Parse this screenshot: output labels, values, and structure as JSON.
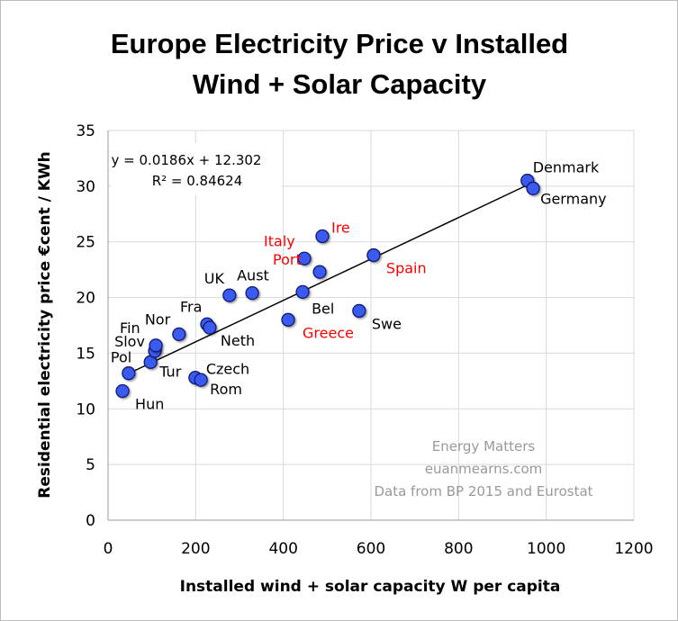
{
  "chart_data": {
    "type": "scatter",
    "title": "Europe Electricity Price v Installed Wind + Solar Capacity",
    "title_lines": [
      "Europe Electricity Price v Installed",
      "Wind + Solar Capacity"
    ],
    "xlabel": "Installed wind + solar capacity W per capita",
    "ylabel": "Residential electricity price €cent / KWh",
    "xlim": [
      0,
      1200
    ],
    "ylim": [
      0,
      35
    ],
    "xticks": [
      0,
      200,
      400,
      600,
      800,
      1000,
      1200
    ],
    "yticks": [
      0,
      5,
      10,
      15,
      20,
      25,
      30,
      35
    ],
    "grid": true,
    "trendline": {
      "equation": "y = 0.0186x + 12.302",
      "r2": "R² = 0.84624",
      "slope": 0.0186,
      "intercept": 12.302,
      "x_range": [
        47,
        965
      ]
    },
    "annotations": [
      "Energy Matters",
      "euanmearns.com",
      "Data from BP 2015 and Eurostat"
    ],
    "colors": {
      "marker": "#3a5af0",
      "marker_edge": "#101a70",
      "highlight_label": "#ff0000",
      "label": "#000000"
    },
    "points": [
      {
        "label": "Hun",
        "x": 33,
        "y": 11.6,
        "red": false
      },
      {
        "label": "Pol",
        "x": 47,
        "y": 13.2,
        "red": false
      },
      {
        "label": "Tur",
        "x": 97,
        "y": 14.2,
        "red": false
      },
      {
        "label": "Slov",
        "x": 107,
        "y": 15.2,
        "red": false
      },
      {
        "label": "Fin",
        "x": 109,
        "y": 15.7,
        "red": false
      },
      {
        "label": "Nor",
        "x": 162,
        "y": 16.7,
        "red": false
      },
      {
        "label": "Fra",
        "x": 226,
        "y": 17.6,
        "red": false
      },
      {
        "label": "Neth",
        "x": 232,
        "y": 17.3,
        "red": false
      },
      {
        "label": "Czech",
        "x": 199,
        "y": 12.8,
        "red": false
      },
      {
        "label": "Rom",
        "x": 212,
        "y": 12.6,
        "red": false
      },
      {
        "label": "UK",
        "x": 277,
        "y": 20.2,
        "red": false
      },
      {
        "label": "Aust",
        "x": 329,
        "y": 20.4,
        "red": false
      },
      {
        "label": "Bel",
        "x": 444,
        "y": 20.5,
        "red": false
      },
      {
        "label": "Greece",
        "x": 411,
        "y": 18.0,
        "red": true
      },
      {
        "label": "Italy",
        "x": 448,
        "y": 23.5,
        "red": true
      },
      {
        "label": "Port",
        "x": 483,
        "y": 22.3,
        "red": true
      },
      {
        "label": "Ire",
        "x": 489,
        "y": 25.5,
        "red": true
      },
      {
        "label": "Spain",
        "x": 606,
        "y": 23.8,
        "red": true
      },
      {
        "label": "Swe",
        "x": 573,
        "y": 18.8,
        "red": false
      },
      {
        "label": "Denmark",
        "x": 957,
        "y": 30.5,
        "red": false
      },
      {
        "label": "Germany",
        "x": 970,
        "y": 29.8,
        "red": false
      }
    ]
  }
}
